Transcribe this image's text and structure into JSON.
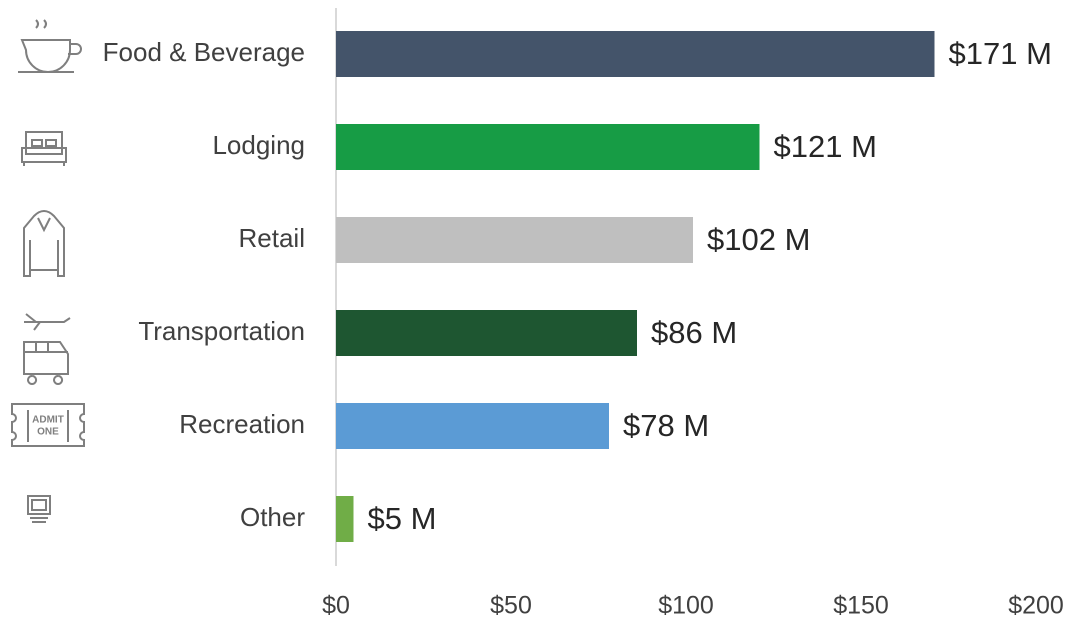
{
  "chart_data": {
    "type": "hbar",
    "categories": [
      "Food & Beverage",
      "Lodging",
      "Retail",
      "Transportation",
      "Recreation",
      "Other"
    ],
    "values": [
      171,
      121,
      102,
      86,
      78,
      5
    ],
    "value_labels": [
      "$171 M",
      "$121 M",
      "$102 M",
      "$86 M",
      "$78 M",
      "$5 M"
    ],
    "colors": [
      "#44546a",
      "#179c45",
      "#bfbfbf",
      "#1e5631",
      "#5b9bd5",
      "#70ad47"
    ],
    "xlim": [
      0,
      200
    ],
    "xticks": [
      {
        "value": 0,
        "label": "$0"
      },
      {
        "value": 50,
        "label": "$50"
      },
      {
        "value": 100,
        "label": "$100"
      },
      {
        "value": 150,
        "label": "$150"
      },
      {
        "value": 200,
        "label": "$200"
      }
    ],
    "grid": false
  }
}
